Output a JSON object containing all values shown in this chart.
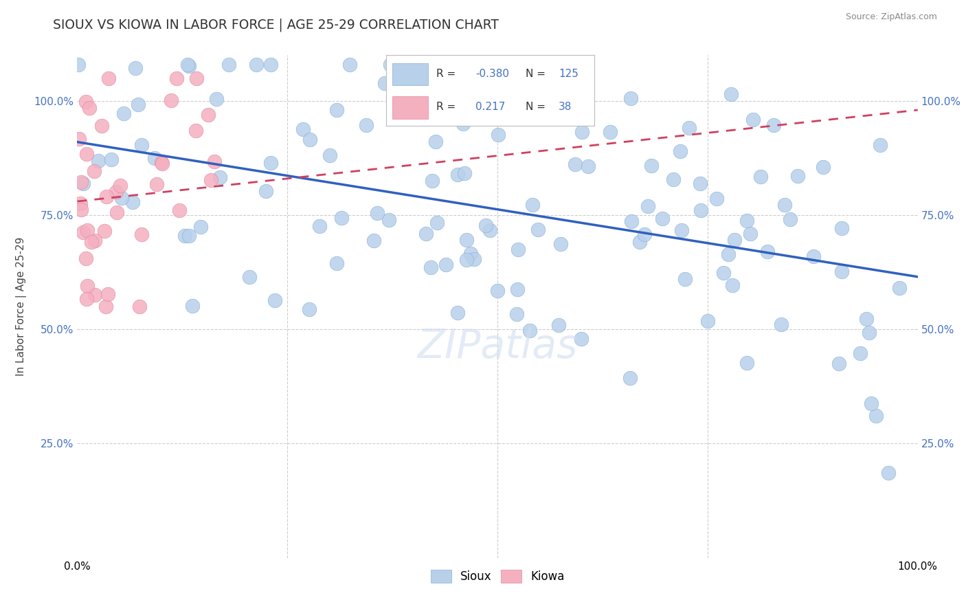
{
  "title": "SIOUX VS KIOWA IN LABOR FORCE | AGE 25-29 CORRELATION CHART",
  "source": "Source: ZipAtlas.com",
  "ylabel": "In Labor Force | Age 25-29",
  "xlim": [
    0.0,
    1.0
  ],
  "ylim": [
    0.0,
    1.1
  ],
  "sioux_R": -0.38,
  "sioux_N": 125,
  "kiowa_R": 0.217,
  "kiowa_N": 38,
  "sioux_color": "#b8d0ea",
  "kiowa_color": "#f5b0c0",
  "sioux_line_color": "#3060c0",
  "kiowa_line_color": "#d04060",
  "grid_color": "#cccccc",
  "background_color": "#ffffff",
  "tick_color": "#4472c4",
  "sioux_line_start_y": 0.91,
  "sioux_line_end_y": 0.615,
  "kiowa_line_start_y": 0.78,
  "kiowa_line_end_y": 0.98
}
